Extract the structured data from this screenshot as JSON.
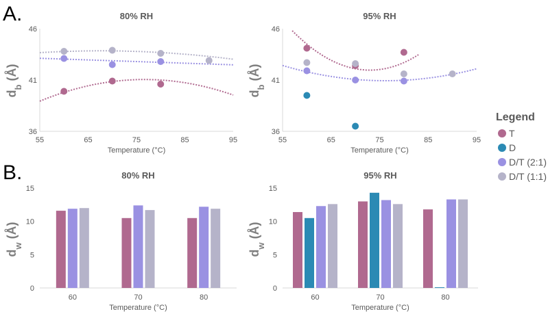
{
  "panel_labels": [
    "A.",
    "B."
  ],
  "colors": {
    "T": "#b0698f",
    "D": "#2b8ab4",
    "DT21": "#9a91e2",
    "DT11": "#b5b3c9",
    "axis": "#d9d9d9",
    "text": "#595959"
  },
  "legend": {
    "title": "Legend",
    "items": [
      {
        "label": "T",
        "color": "#b0698f"
      },
      {
        "label": "D",
        "color": "#2b8ab4"
      },
      {
        "label": "D/T (2:1)",
        "color": "#9a91e2"
      },
      {
        "label": "D/T (1:1)",
        "color": "#b5b3c9"
      }
    ]
  },
  "chart_data": [
    {
      "type": "scatter",
      "title": "80% RH",
      "xlabel": "Temperature (°C)",
      "ylabel": "d",
      "ylabel_sub": "b",
      "ylabel_unit": " (Å)",
      "xlim": [
        55,
        95
      ],
      "ylim": [
        36,
        46
      ],
      "xticks": [
        "55",
        "65",
        "75",
        "85",
        "95"
      ],
      "yticks": [
        "36",
        "41",
        "46"
      ],
      "series": [
        {
          "name": "T",
          "color": "#b0698f",
          "x": [
            60,
            70,
            80
          ],
          "y": [
            39.9,
            40.9,
            40.6
          ],
          "trend": [
            -0.0045,
            0.69,
            14.6
          ],
          "trend_range": [
            55,
            95
          ]
        },
        {
          "name": "D/T (2:1)",
          "color": "#9a91e2",
          "x": [
            60,
            70,
            80
          ],
          "y": [
            43.1,
            42.5,
            42.8
          ],
          "trend": [
            0,
            -0.016,
            44.0
          ],
          "trend_range": [
            55,
            95
          ]
        },
        {
          "name": "D/T (1:1)",
          "color": "#b5b3c9",
          "x": [
            60,
            70,
            80,
            90
          ],
          "y": [
            43.8,
            43.9,
            43.6,
            42.9
          ],
          "trend": [
            -0.0011,
            0.149,
            38.8
          ],
          "trend_range": [
            55,
            95
          ]
        }
      ]
    },
    {
      "type": "scatter",
      "title": "95% RH",
      "xlabel": "Temperature (°C)",
      "ylabel": "d",
      "ylabel_sub": "b",
      "ylabel_unit": " (Å)",
      "xlim": [
        55,
        95
      ],
      "ylim": [
        36,
        46
      ],
      "xticks": [
        "55",
        "65",
        "75",
        "85",
        "95"
      ],
      "yticks": [
        "36",
        "41",
        "46"
      ],
      "series": [
        {
          "name": "T",
          "color": "#b0698f",
          "x": [
            60,
            70,
            80
          ],
          "y": [
            44.1,
            42.4,
            43.7
          ],
          "trend": [
            0.015,
            -2.19,
            121.9
          ],
          "trend_range": [
            56,
            83
          ]
        },
        {
          "name": "D",
          "color": "#2b8ab4",
          "x": [
            60,
            70
          ],
          "y": [
            39.5,
            36.5
          ],
          "trend": null
        },
        {
          "name": "D/T (2:1)",
          "color": "#9a91e2",
          "x": [
            60,
            70,
            80
          ],
          "y": [
            41.9,
            41.0,
            40.9
          ],
          "trend": [
            0.0033,
            -0.503,
            60.1
          ],
          "trend_range": [
            55,
            95
          ]
        },
        {
          "name": "D/T (1:1)",
          "color": "#b5b3c9",
          "x": [
            60,
            70,
            80,
            90
          ],
          "y": [
            42.7,
            42.6,
            41.6,
            41.6
          ],
          "trend": null
        }
      ]
    },
    {
      "type": "bar",
      "title": "80% RH",
      "xlabel": "Temperature (°C)",
      "ylabel": "d",
      "ylabel_sub": "w",
      "ylabel_unit": " (Å)",
      "ylim": [
        0,
        15
      ],
      "yticks": [
        "0",
        "5",
        "10",
        "15"
      ],
      "categories": [
        "60",
        "70",
        "80"
      ],
      "series": [
        {
          "name": "T",
          "color": "#b0698f",
          "values": [
            11.6,
            10.5,
            10.5
          ]
        },
        {
          "name": "D/T (2:1)",
          "color": "#9a91e2",
          "values": [
            11.9,
            12.4,
            12.2
          ]
        },
        {
          "name": "D/T (1:1)",
          "color": "#b5b3c9",
          "values": [
            12.0,
            11.7,
            11.9
          ]
        }
      ]
    },
    {
      "type": "bar",
      "title": "95% RH",
      "xlabel": "Temperature (°C)",
      "ylabel": "d",
      "ylabel_sub": "w",
      "ylabel_unit": " (Å)",
      "ylim": [
        0,
        15
      ],
      "yticks": [
        "0",
        "5",
        "10",
        "15"
      ],
      "categories": [
        "60",
        "70",
        "80"
      ],
      "series": [
        {
          "name": "T",
          "color": "#b0698f",
          "values": [
            11.4,
            13.0,
            11.8
          ]
        },
        {
          "name": "D",
          "color": "#2b8ab4",
          "values": [
            10.5,
            14.3,
            0.1
          ]
        },
        {
          "name": "D/T (2:1)",
          "color": "#9a91e2",
          "values": [
            12.3,
            13.2,
            13.3
          ]
        },
        {
          "name": "D/T (1:1)",
          "color": "#b5b3c9",
          "values": [
            12.6,
            12.6,
            13.3
          ]
        }
      ]
    }
  ]
}
